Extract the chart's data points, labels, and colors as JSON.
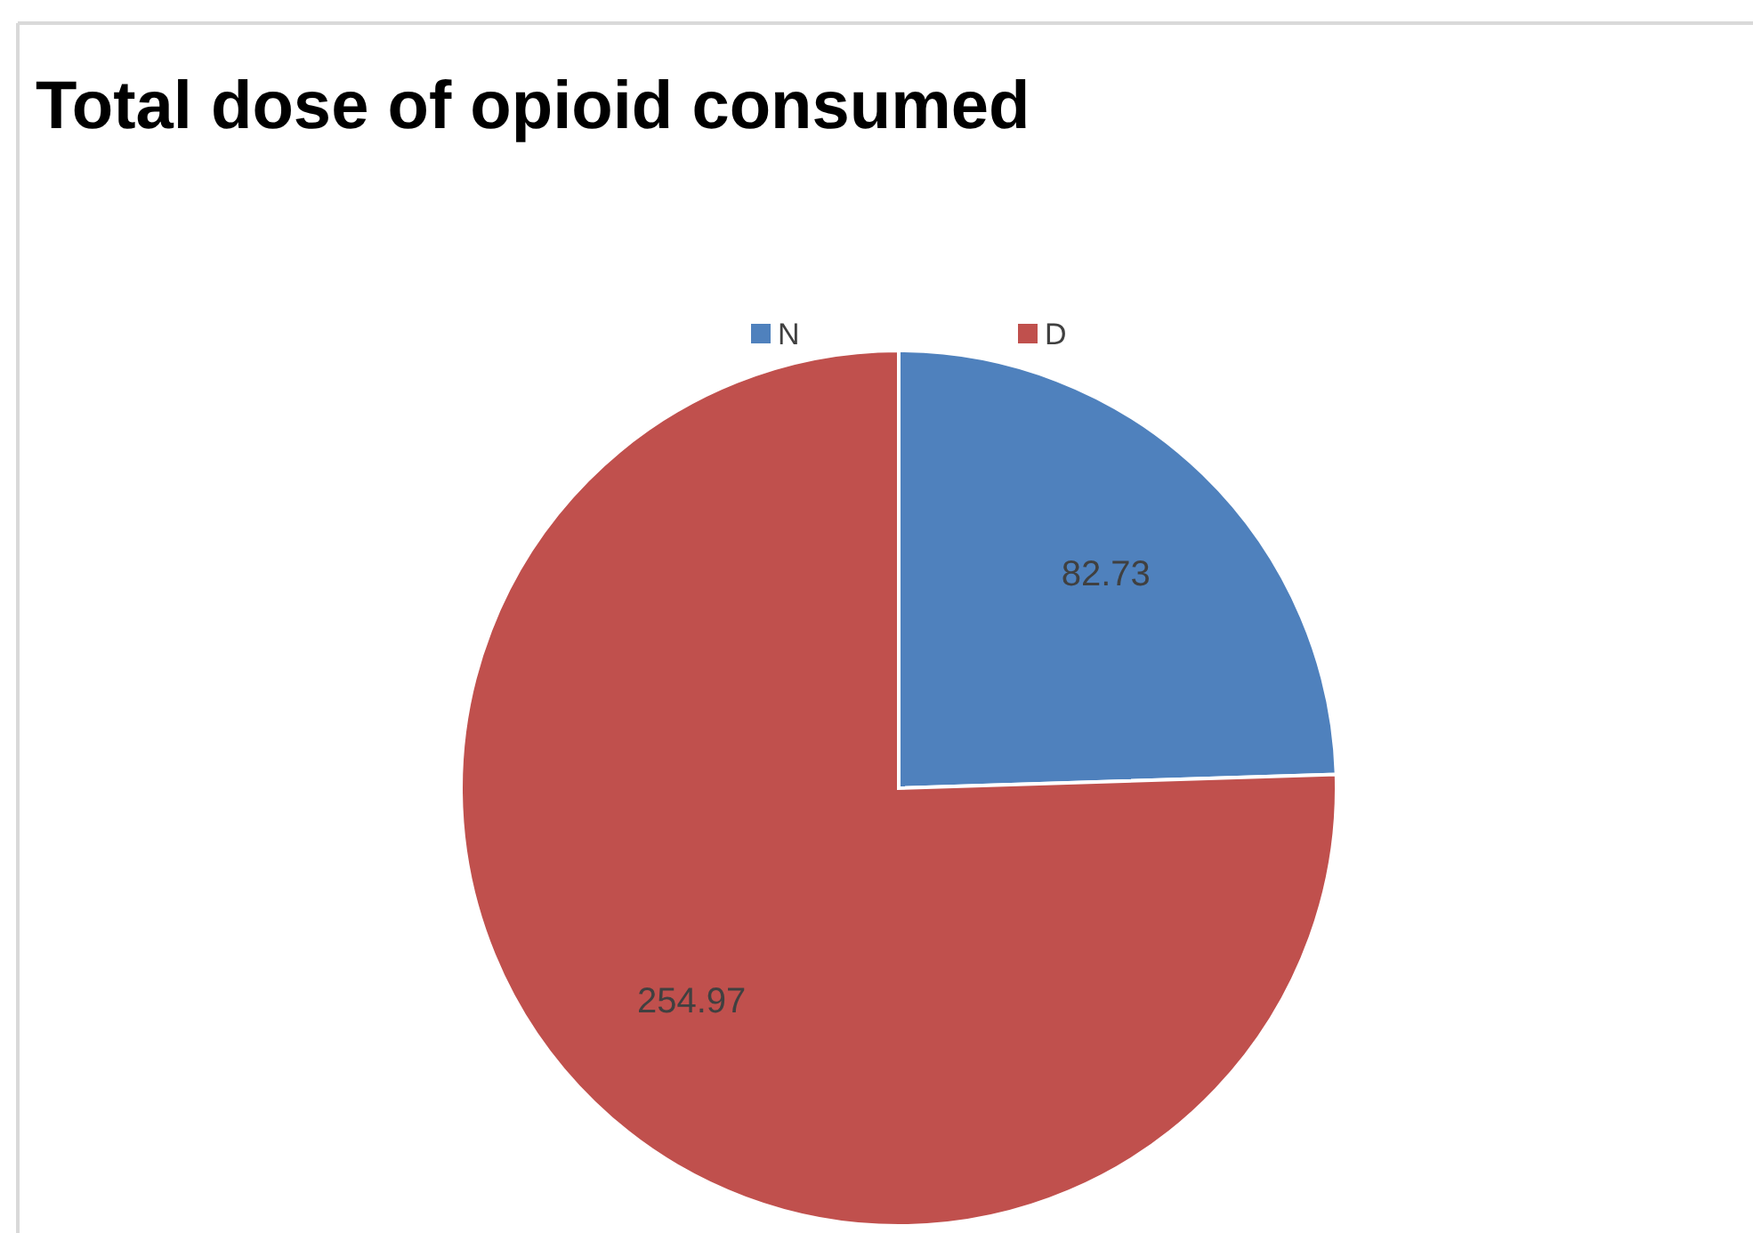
{
  "chart_data": {
    "type": "pie",
    "title": "Total dose of opioid consumed",
    "categories": [
      "N",
      "D"
    ],
    "values": [
      82.73,
      254.97
    ],
    "colors": [
      "#4f81bd",
      "#c0504d"
    ],
    "data_labels": true,
    "legend": "top"
  }
}
